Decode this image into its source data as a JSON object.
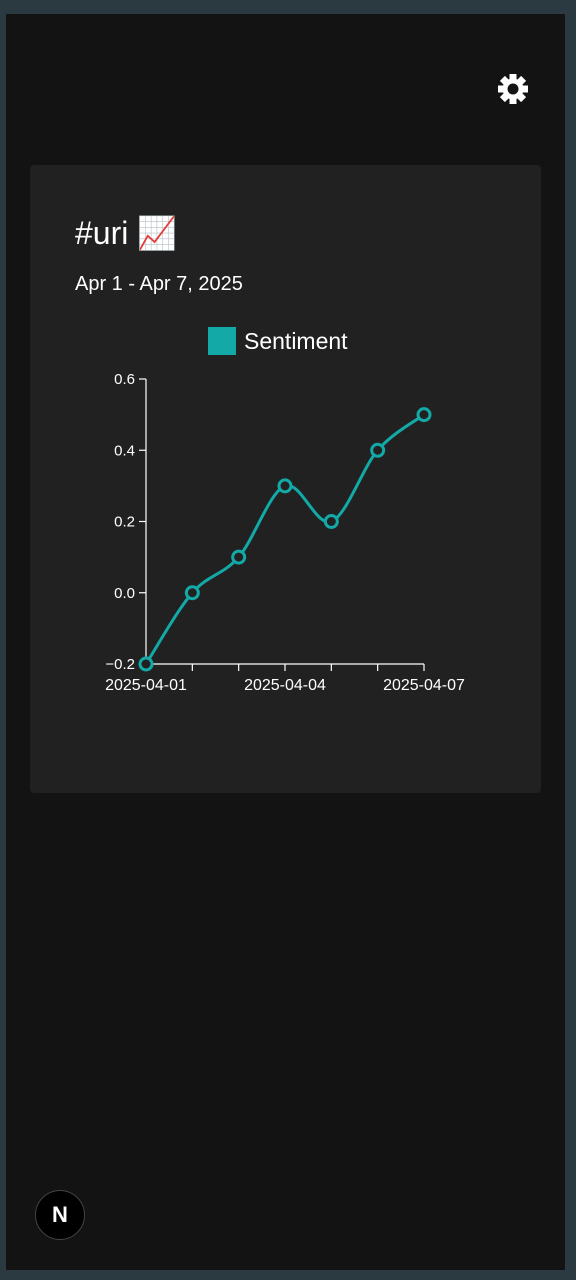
{
  "header": {
    "theme_toggle_icon": "sun-icon"
  },
  "card": {
    "title": "#uri",
    "title_emoji": "📈",
    "subtitle": "Apr 1 - Apr 7, 2025"
  },
  "colors": {
    "page_bg": "#131313",
    "card_bg": "#212121",
    "series": "#12a9a6",
    "axis": "#ffffff"
  },
  "chart_data": {
    "type": "line",
    "x": [
      "2025-04-01",
      "2025-04-02",
      "2025-04-03",
      "2025-04-04",
      "2025-04-05",
      "2025-04-06",
      "2025-04-07"
    ],
    "series": [
      {
        "name": "Sentiment",
        "values": [
          -0.2,
          0.0,
          0.1,
          0.3,
          0.2,
          0.4,
          0.5
        ]
      }
    ],
    "ylim": [
      -0.2,
      0.6
    ],
    "yticks": [
      "0.6",
      "0.4",
      "0.2",
      "0.0",
      "−0.2"
    ],
    "xtick_labels": [
      "2025-04-01",
      "2025-04-04",
      "2025-04-07"
    ],
    "legend_position": "top",
    "grid": false
  },
  "footer": {
    "badge_letter": "N"
  }
}
